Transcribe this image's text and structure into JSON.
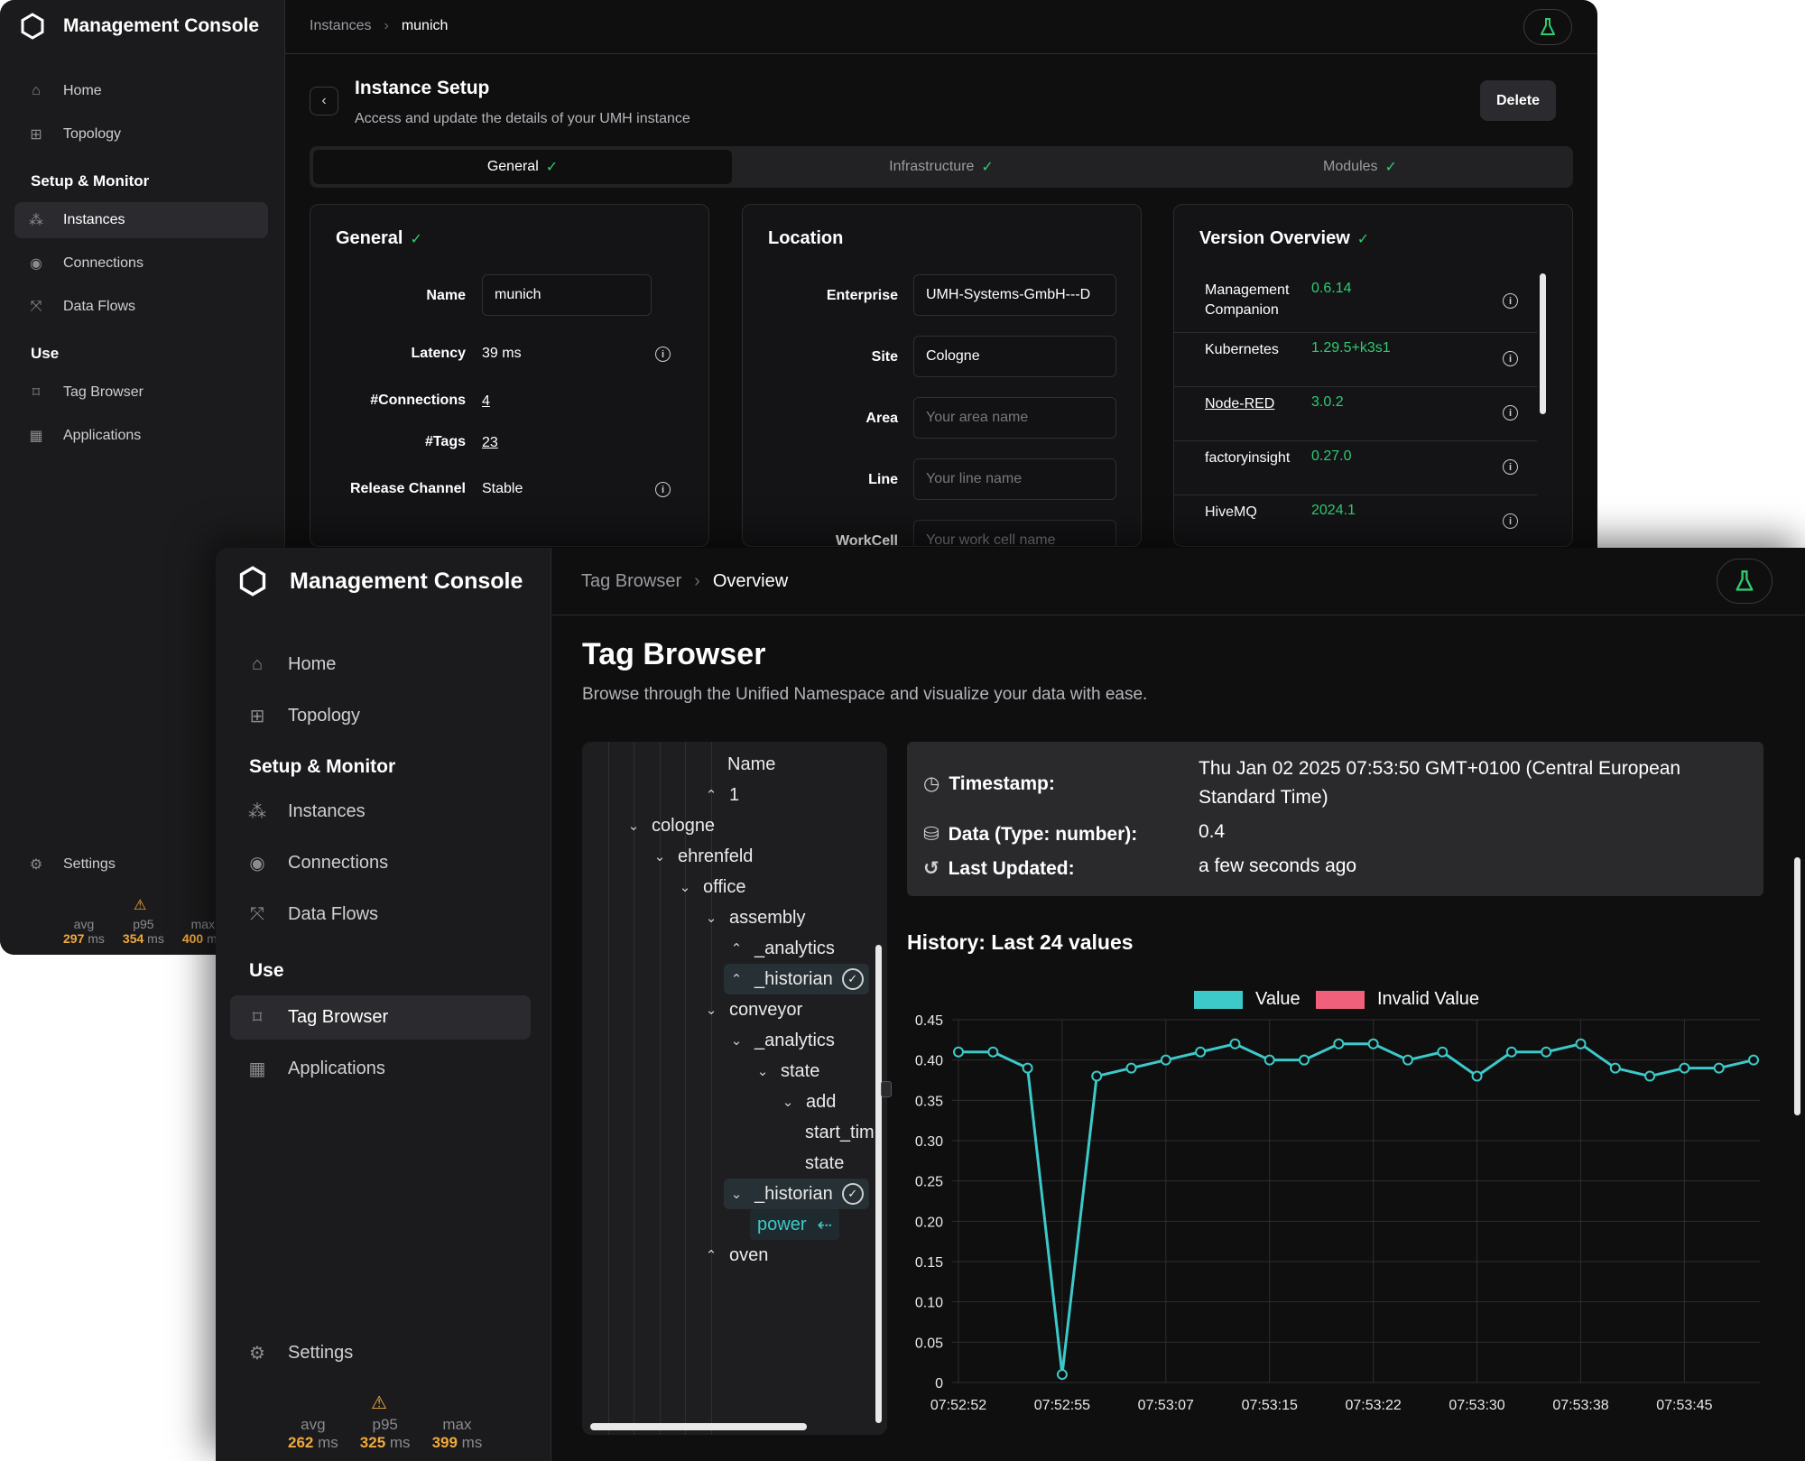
{
  "back": {
    "brand": "Management Console",
    "nav": {
      "home": "Home",
      "topology": "Topology",
      "setup_section": "Setup & Monitor",
      "instances": "Instances",
      "connections": "Connections",
      "data_flows": "Data Flows",
      "use_section": "Use",
      "tag_browser": "Tag Browser",
      "applications": "Applications",
      "settings": "Settings"
    },
    "latency": {
      "avg_label": "avg",
      "p95_label": "p95",
      "max_label": "max",
      "avg": "297",
      "p95": "354",
      "max": "400",
      "unit": "ms"
    },
    "breadcrumb": {
      "parent": "Instances",
      "current": "munich"
    },
    "header": {
      "title": "Instance Setup",
      "subtitle": "Access and update the details of your UMH instance",
      "delete_label": "Delete"
    },
    "tabs": {
      "general": "General",
      "infrastructure": "Infrastructure",
      "modules": "Modules"
    },
    "general": {
      "title": "General",
      "name_label": "Name",
      "name_value": "munich",
      "latency_label": "Latency",
      "latency_value": "39 ms",
      "connections_label": "#Connections",
      "connections_value": "4",
      "tags_label": "#Tags",
      "tags_value": "23",
      "release_label": "Release Channel",
      "release_value": "Stable"
    },
    "location": {
      "title": "Location",
      "enterprise_label": "Enterprise",
      "enterprise_value": "UMH-Systems-GmbH---D",
      "site_label": "Site",
      "site_value": "Cologne",
      "area_label": "Area",
      "area_placeholder": "Your area name",
      "line_label": "Line",
      "line_placeholder": "Your line name",
      "workcell_label": "WorkCell",
      "workcell_placeholder": "Your work cell name"
    },
    "versions": {
      "title": "Version Overview",
      "items": [
        {
          "name": "Management Companion",
          "version": "0.6.14"
        },
        {
          "name": "Kubernetes",
          "version": "1.29.5+k3s1"
        },
        {
          "name": "Node-RED",
          "version": "3.0.2"
        },
        {
          "name": "factoryinsight",
          "version": "0.27.0"
        },
        {
          "name": "HiveMQ",
          "version": "2024.1"
        }
      ]
    }
  },
  "front": {
    "brand": "Management Console",
    "nav": {
      "home": "Home",
      "topology": "Topology",
      "setup_section": "Setup & Monitor",
      "instances": "Instances",
      "connections": "Connections",
      "data_flows": "Data Flows",
      "use_section": "Use",
      "tag_browser": "Tag Browser",
      "applications": "Applications",
      "settings": "Settings"
    },
    "latency": {
      "avg_label": "avg",
      "p95_label": "p95",
      "max_label": "max",
      "avg": "262",
      "p95": "325",
      "max": "399",
      "unit": "ms"
    },
    "breadcrumb": {
      "parent": "Tag Browser",
      "current": "Overview"
    },
    "title": "Tag Browser",
    "subtitle": "Browse through the Unified Namespace and visualize your data with ease.",
    "tree": {
      "header": "Name",
      "nodes": [
        "1",
        "cologne",
        "ehrenfeld",
        "office",
        "assembly",
        "_analytics",
        "_historian",
        "conveyor",
        "_analytics",
        "state",
        "add",
        "start_tim",
        "state",
        "_historian",
        "power",
        "oven"
      ]
    },
    "detail": {
      "timestamp_label": "Timestamp:",
      "timestamp_value": "Thu Jan 02 2025 07:53:50 GMT+0100 (Central European Standard Time)",
      "data_label": "Data (Type: number):",
      "data_value": "0.4",
      "updated_label": "Last Updated:",
      "updated_value": "a few seconds ago"
    },
    "history_title": "History: Last 24 values",
    "colors": {
      "value": "#3dc9c9",
      "invalid": "#f0607a"
    }
  },
  "chart_data": {
    "type": "line",
    "legend": [
      "Value",
      "Invalid Value"
    ],
    "x_tick_labels": [
      "07:52:52",
      "07:52:55",
      "07:53:07",
      "07:53:15",
      "07:53:22",
      "07:53:30",
      "07:53:38",
      "07:53:45"
    ],
    "y_tick_labels": [
      "0",
      "0.05",
      "0.10",
      "0.15",
      "0.20",
      "0.25",
      "0.30",
      "0.35",
      "0.40",
      "0.45"
    ],
    "ylim": [
      0,
      0.45
    ],
    "series": [
      {
        "name": "Value",
        "values": [
          0.41,
          0.41,
          0.39,
          0.01,
          0.38,
          0.39,
          0.4,
          0.41,
          0.42,
          0.4,
          0.4,
          0.42,
          0.42,
          0.4,
          0.41,
          0.38,
          0.41,
          0.41,
          0.42,
          0.39,
          0.38,
          0.39,
          0.39,
          0.4
        ]
      }
    ]
  }
}
